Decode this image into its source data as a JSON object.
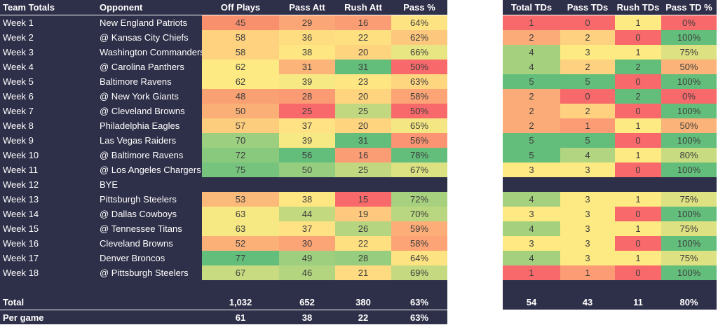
{
  "headers": {
    "left": [
      "Team Totals",
      "Opponent",
      "Off Plays",
      "Pass Att",
      "Rush Att",
      "Pass %"
    ],
    "right": [
      "Total TDs",
      "Pass TDs",
      "Rush TDs",
      "Pass TD %"
    ]
  },
  "rows": [
    {
      "week": "Week 1",
      "opp": "New England Patriots",
      "off": "45",
      "pass": "29",
      "rush": "16",
      "pct": "64%",
      "ttd": "1",
      "ptd": "0",
      "rtd": "1",
      "tdpct": "0%",
      "c": [
        "#f8906e",
        "#fba676",
        "#fb9d74",
        "#fee382"
      ],
      "rc": [
        "#f8696b",
        "#f8696b",
        "#feea83",
        "#f8696b"
      ]
    },
    {
      "week": "Week 2",
      "opp": "@ Kansas City Chiefs",
      "off": "58",
      "pass": "36",
      "rush": "22",
      "pct": "62%",
      "ttd": "2",
      "ptd": "2",
      "rtd": "0",
      "tdpct": "100%",
      "c": [
        "#fed27f",
        "#fedd81",
        "#fee081",
        "#fdc77d"
      ],
      "rc": [
        "#fbab77",
        "#fdd17f",
        "#f8696b",
        "#63be7b"
      ]
    },
    {
      "week": "Week 3",
      "opp": "Washington Commanders",
      "off": "58",
      "pass": "38",
      "rush": "20",
      "pct": "66%",
      "ttd": "4",
      "ptd": "3",
      "rtd": "1",
      "tdpct": "75%",
      "c": [
        "#fed27f",
        "#fee683",
        "#fed47f",
        "#e8e583"
      ],
      "rc": [
        "#a5d17f",
        "#feea83",
        "#feea83",
        "#dde182"
      ]
    },
    {
      "week": "Week 4",
      "opp": "@ Carolina Panthers",
      "off": "62",
      "pass": "31",
      "rush": "31",
      "pct": "50%",
      "ttd": "4",
      "ptd": "2",
      "rtd": "2",
      "tdpct": "50%",
      "c": [
        "#feea83",
        "#fcb479",
        "#63be7b",
        "#f8696b"
      ],
      "rc": [
        "#a5d17f",
        "#fdd17f",
        "#63be7b",
        "#fbb379"
      ]
    },
    {
      "week": "Week 5",
      "opp": "Baltimore Ravens",
      "off": "62",
      "pass": "39",
      "rush": "23",
      "pct": "63%",
      "ttd": "5",
      "ptd": "5",
      "rtd": "0",
      "tdpct": "100%",
      "c": [
        "#feea83",
        "#f6e883",
        "#fee683",
        "#fed680"
      ],
      "rc": [
        "#63be7b",
        "#63be7b",
        "#f8696b",
        "#63be7b"
      ]
    },
    {
      "week": "Week 6",
      "opp": "@ New York Giants",
      "off": "48",
      "pass": "28",
      "rush": "20",
      "pct": "58%",
      "ttd": "2",
      "ptd": "0",
      "rtd": "2",
      "tdpct": "0%",
      "c": [
        "#f9a173",
        "#fb9b74",
        "#fed47f",
        "#fca476"
      ],
      "rc": [
        "#fbab77",
        "#f8696b",
        "#63be7b",
        "#f8696b"
      ]
    },
    {
      "week": "Week 7",
      "opp": "@ Cleveland Browns",
      "off": "50",
      "pass": "25",
      "rush": "25",
      "pct": "50%",
      "ttd": "2",
      "ptd": "2",
      "rtd": "0",
      "tdpct": "100%",
      "c": [
        "#faaf77",
        "#f8696b",
        "#c1d880",
        "#f8696b"
      ],
      "rc": [
        "#fbab77",
        "#fdd17f",
        "#f8696b",
        "#63be7b"
      ]
    },
    {
      "week": "Week 8",
      "opp": "Philadelphia Eagles",
      "off": "57",
      "pass": "37",
      "rush": "20",
      "pct": "65%",
      "ttd": "2",
      "ptd": "1",
      "rtd": "1",
      "tdpct": "50%",
      "c": [
        "#fdcd7e",
        "#fee283",
        "#fed47f",
        "#f4e783"
      ],
      "rc": [
        "#fbab77",
        "#fb9c74",
        "#feea83",
        "#fbb379"
      ]
    },
    {
      "week": "Week 9",
      "opp": "Las Vegas Raiders",
      "off": "70",
      "pass": "39",
      "rush": "31",
      "pct": "56%",
      "ttd": "5",
      "ptd": "5",
      "rtd": "0",
      "tdpct": "100%",
      "c": [
        "#9ccf7f",
        "#f6e883",
        "#63be7b",
        "#fb9473"
      ],
      "rc": [
        "#63be7b",
        "#63be7b",
        "#f8696b",
        "#63be7b"
      ]
    },
    {
      "week": "Week 10",
      "opp": "@ Baltimore Ravens",
      "off": "72",
      "pass": "56",
      "rush": "16",
      "pct": "78%",
      "ttd": "5",
      "ptd": "4",
      "rtd": "1",
      "tdpct": "80%",
      "c": [
        "#89c97e",
        "#63be7b",
        "#fb9d74",
        "#63be7b"
      ],
      "rc": [
        "#63be7b",
        "#b1d580",
        "#feea83",
        "#c8db81"
      ]
    },
    {
      "week": "Week 11",
      "opp": "@ Los Angeles Chargers",
      "off": "75",
      "pass": "50",
      "rush": "25",
      "pct": "67%",
      "ttd": "3",
      "ptd": "3",
      "rtd": "0",
      "tdpct": "100%",
      "c": [
        "#76c37d",
        "#97cd7e",
        "#c1d880",
        "#dce282"
      ],
      "rc": [
        "#fee983",
        "#feea83",
        "#f8696b",
        "#63be7b"
      ]
    },
    {
      "week": "Week 12",
      "opp": "BYE",
      "bye": true
    },
    {
      "week": "Week 13",
      "opp": "Pittsburgh Steelers",
      "off": "53",
      "pass": "38",
      "rush": "15",
      "pct": "72%",
      "ttd": "4",
      "ptd": "3",
      "rtd": "1",
      "tdpct": "75%",
      "c": [
        "#fcba7a",
        "#fee683",
        "#f8696b",
        "#a7d17f"
      ],
      "rc": [
        "#a5d17f",
        "#feea83",
        "#feea83",
        "#dde182"
      ]
    },
    {
      "week": "Week 14",
      "opp": "@ Dallas Cowboys",
      "off": "63",
      "pass": "44",
      "rush": "19",
      "pct": "70%",
      "ttd": "3",
      "ptd": "3",
      "rtd": "0",
      "tdpct": "100%",
      "c": [
        "#f6e883",
        "#c3d980",
        "#fec97e",
        "#b9d680"
      ],
      "rc": [
        "#fee983",
        "#feea83",
        "#f8696b",
        "#63be7b"
      ]
    },
    {
      "week": "Week 15",
      "opp": "@ Tennessee Titans",
      "off": "63",
      "pass": "37",
      "rush": "26",
      "pct": "59%",
      "ttd": "4",
      "ptd": "3",
      "rtd": "1",
      "tdpct": "75%",
      "c": [
        "#f6e883",
        "#fee283",
        "#b6d580",
        "#fcad78"
      ],
      "rc": [
        "#a5d17f",
        "#feea83",
        "#feea83",
        "#dde182"
      ]
    },
    {
      "week": "Week 16",
      "opp": "Cleveland Browns",
      "off": "52",
      "pass": "30",
      "rush": "22",
      "pct": "58%",
      "ttd": "3",
      "ptd": "3",
      "rtd": "0",
      "tdpct": "100%",
      "c": [
        "#fbb077",
        "#fba475",
        "#fee081",
        "#fca476"
      ],
      "rc": [
        "#fee983",
        "#feea83",
        "#f8696b",
        "#63be7b"
      ]
    },
    {
      "week": "Week 17",
      "opp": "Denver Broncos",
      "off": "77",
      "pass": "49",
      "rush": "28",
      "pct": "64%",
      "ttd": "4",
      "ptd": "3",
      "rtd": "1",
      "tdpct": "75%",
      "c": [
        "#63be7b",
        "#9dcf7f",
        "#97cd7e",
        "#fee382"
      ],
      "rc": [
        "#a5d17f",
        "#feea83",
        "#feea83",
        "#dde182"
      ]
    },
    {
      "week": "Week 18",
      "opp": "@ Pittsburgh Steelers",
      "off": "67",
      "pass": "46",
      "rush": "21",
      "pct": "69%",
      "ttd": "1",
      "ptd": "1",
      "rtd": "0",
      "tdpct": "100%",
      "c": [
        "#c8db81",
        "#b3d580",
        "#fedb80",
        "#c4d980"
      ],
      "rc": [
        "#f8696b",
        "#fb9c74",
        "#f8696b",
        "#63be7b"
      ]
    }
  ],
  "total": {
    "label": "Total",
    "off": "1,032",
    "pass": "652",
    "rush": "380",
    "pct": "63%",
    "ttd": "54",
    "ptd": "43",
    "rtd": "11",
    "tdpct": "80%"
  },
  "per_game": {
    "label": "Per game",
    "off": "61",
    "pass": "38",
    "rush": "22",
    "pct": "63%"
  }
}
